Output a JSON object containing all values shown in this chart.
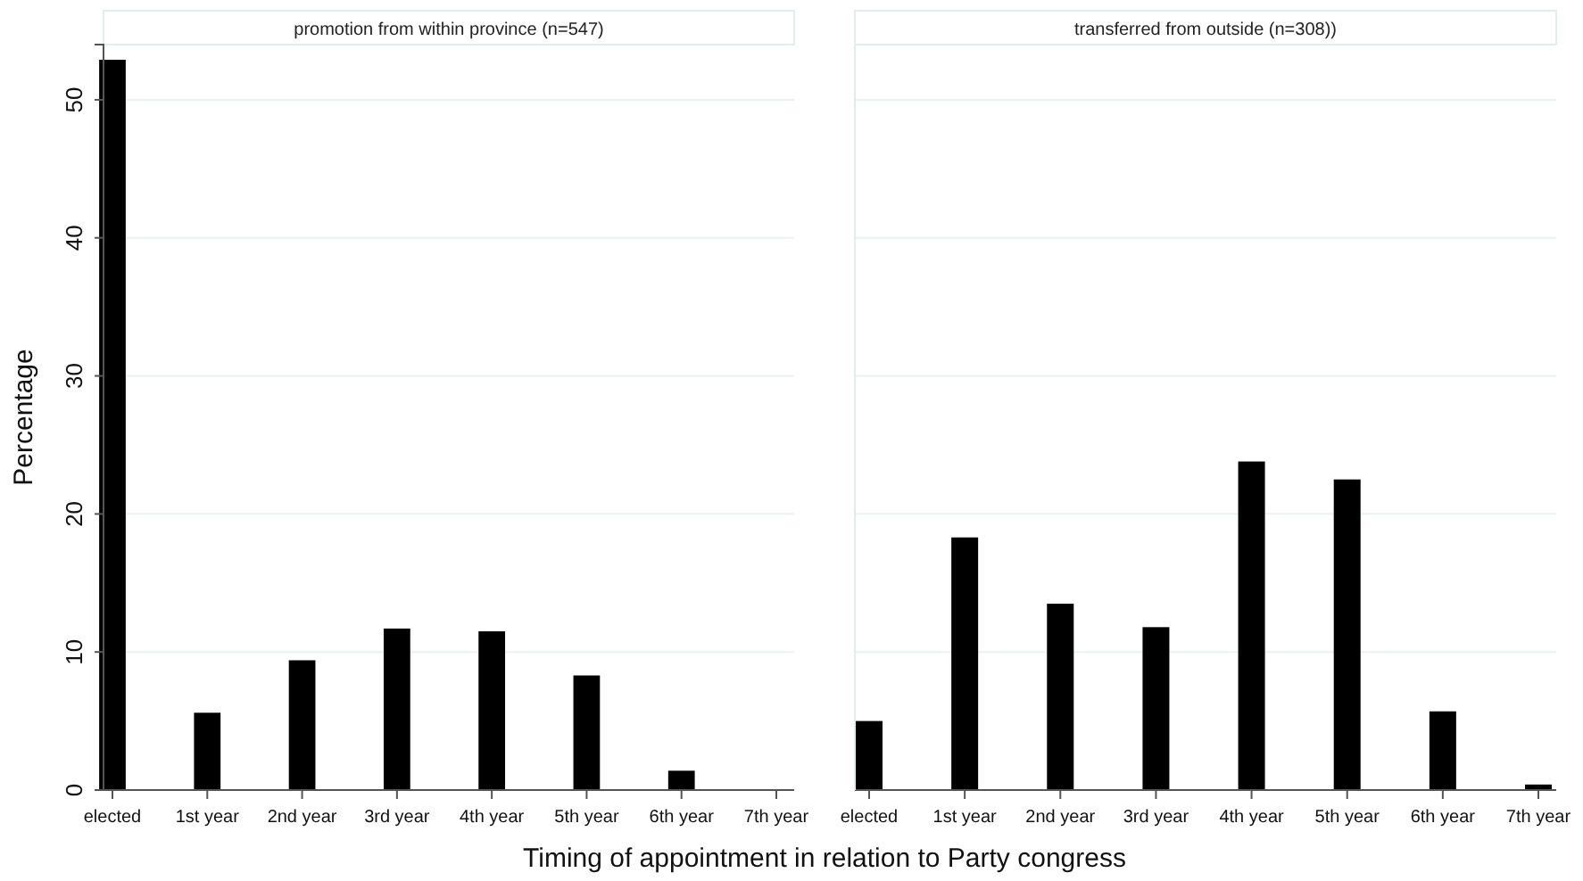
{
  "chart_data": [
    {
      "type": "bar",
      "title": "promotion from within province (n=547)",
      "ylabel": "Percentage",
      "xlabel": "Timing of appointment in relation to Party congress",
      "categories": [
        "elected",
        "1st year",
        "2nd year",
        "3rd year",
        "4th year",
        "5th year",
        "6th year",
        "7th year"
      ],
      "values": [
        52.9,
        5.6,
        9.4,
        11.7,
        11.5,
        8.3,
        1.4,
        0
      ],
      "color": "#000000",
      "ylim": [
        0,
        54
      ],
      "yticks": [
        0,
        10,
        20,
        30,
        40,
        50
      ],
      "grid": "y"
    },
    {
      "type": "bar",
      "title": "transferred from outside (n=308))",
      "categories": [
        "elected",
        "1st year",
        "2nd year",
        "3rd year",
        "4th year",
        "5th year",
        "6th year",
        "7th year"
      ],
      "values": [
        5.0,
        18.3,
        13.5,
        11.8,
        23.8,
        22.5,
        5.7,
        0.4
      ],
      "color": "#000000",
      "ylim": [
        0,
        54
      ],
      "yticks": [
        0,
        10,
        20,
        30,
        40,
        50
      ],
      "grid": "y",
      "tick_labels": "x"
    }
  ]
}
